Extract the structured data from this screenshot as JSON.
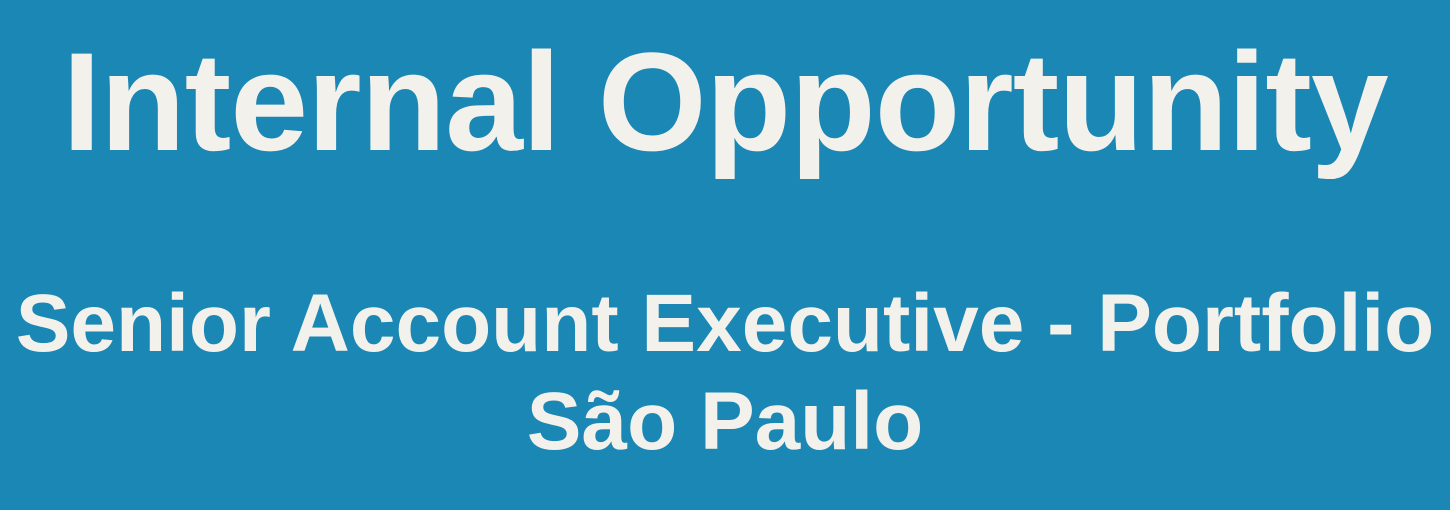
{
  "banner": {
    "title": "Internal Opportunity",
    "role": "Senior Account Executive - Portfolio",
    "location": "São Paulo",
    "background_color": "#1a87b5",
    "text_color": "#f3f1ec"
  }
}
